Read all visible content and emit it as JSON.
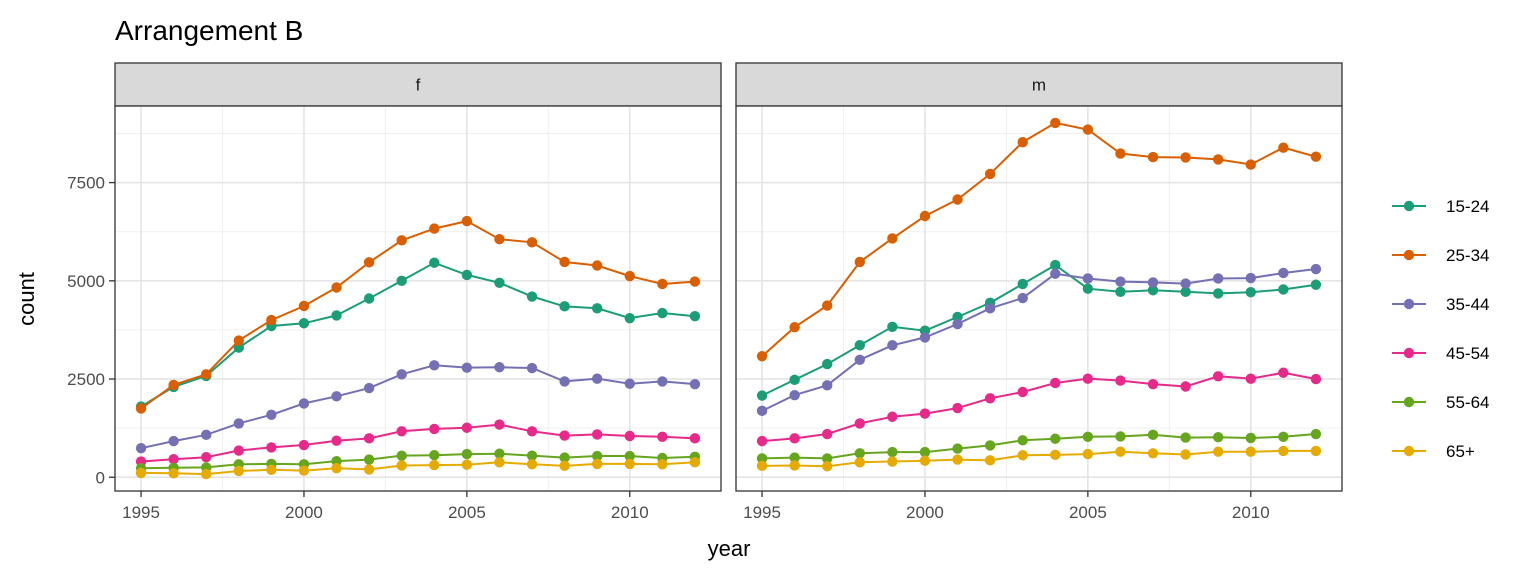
{
  "title": "Arrangement B",
  "chart_data": {
    "type": "line",
    "title": "Arrangement B",
    "xlabel": "year",
    "ylabel": "count",
    "facets": [
      "f",
      "m"
    ],
    "x": [
      1995,
      1996,
      1997,
      1998,
      1999,
      2000,
      2001,
      2002,
      2003,
      2004,
      2005,
      2006,
      2007,
      2008,
      2009,
      2010,
      2011,
      2012
    ],
    "x_ticks": [
      1995,
      2000,
      2005,
      2010
    ],
    "y_ticks": [
      0,
      2500,
      5000,
      7500
    ],
    "xlim": [
      1994.2,
      2012.8
    ],
    "ylim": [
      -350,
      9450
    ],
    "grid": true,
    "legend_position": "right",
    "series": [
      {
        "name": "15-24",
        "color": "#1B9E77",
        "f": [
          1800,
          2300,
          2580,
          3300,
          3850,
          3920,
          4120,
          4550,
          5000,
          5460,
          5150,
          4950,
          4600,
          4350,
          4300,
          4050,
          4180,
          4100
        ],
        "m": [
          2080,
          2480,
          2880,
          3360,
          3830,
          3730,
          4080,
          4440,
          4920,
          5400,
          4800,
          4720,
          4760,
          4720,
          4680,
          4710,
          4780,
          4900
        ]
      },
      {
        "name": "25-34",
        "color": "#D95F02",
        "f": [
          1750,
          2350,
          2620,
          3480,
          4000,
          4360,
          4830,
          5470,
          6030,
          6330,
          6520,
          6060,
          5980,
          5480,
          5390,
          5120,
          4920,
          4980
        ],
        "m": [
          3080,
          3820,
          4370,
          5480,
          6080,
          6650,
          7070,
          7720,
          8530,
          9020,
          8850,
          8240,
          8150,
          8140,
          8090,
          7960,
          8390,
          8160
        ]
      },
      {
        "name": "35-44",
        "color": "#7570B3",
        "f": [
          740,
          920,
          1080,
          1370,
          1590,
          1880,
          2060,
          2270,
          2620,
          2850,
          2790,
          2800,
          2780,
          2440,
          2510,
          2380,
          2440,
          2370
        ],
        "m": [
          1690,
          2090,
          2340,
          2990,
          3360,
          3560,
          3900,
          4300,
          4560,
          5180,
          5060,
          4980,
          4960,
          4930,
          5060,
          5070,
          5200,
          5300
        ]
      },
      {
        "name": "45-54",
        "color": "#E7298A",
        "f": [
          400,
          460,
          510,
          680,
          760,
          820,
          930,
          990,
          1170,
          1230,
          1260,
          1340,
          1170,
          1060,
          1090,
          1050,
          1030,
          990
        ],
        "m": [
          920,
          990,
          1100,
          1370,
          1540,
          1620,
          1760,
          2010,
          2170,
          2400,
          2510,
          2460,
          2370,
          2310,
          2570,
          2510,
          2660,
          2500
        ]
      },
      {
        "name": "55-64",
        "color": "#66A61E",
        "f": [
          230,
          240,
          250,
          330,
          340,
          330,
          410,
          450,
          550,
          560,
          590,
          600,
          550,
          500,
          540,
          540,
          490,
          520
        ],
        "m": [
          480,
          500,
          480,
          610,
          640,
          640,
          730,
          810,
          940,
          980,
          1030,
          1040,
          1080,
          1010,
          1020,
          1000,
          1030,
          1100
        ]
      },
      {
        "name": "65+",
        "color": "#E6AB02",
        "f": [
          110,
          100,
          80,
          160,
          190,
          170,
          230,
          200,
          300,
          310,
          320,
          380,
          330,
          290,
          340,
          340,
          330,
          380
        ],
        "m": [
          290,
          300,
          280,
          380,
          400,
          420,
          450,
          430,
          560,
          570,
          590,
          650,
          610,
          580,
          650,
          650,
          670,
          670
        ]
      }
    ]
  }
}
